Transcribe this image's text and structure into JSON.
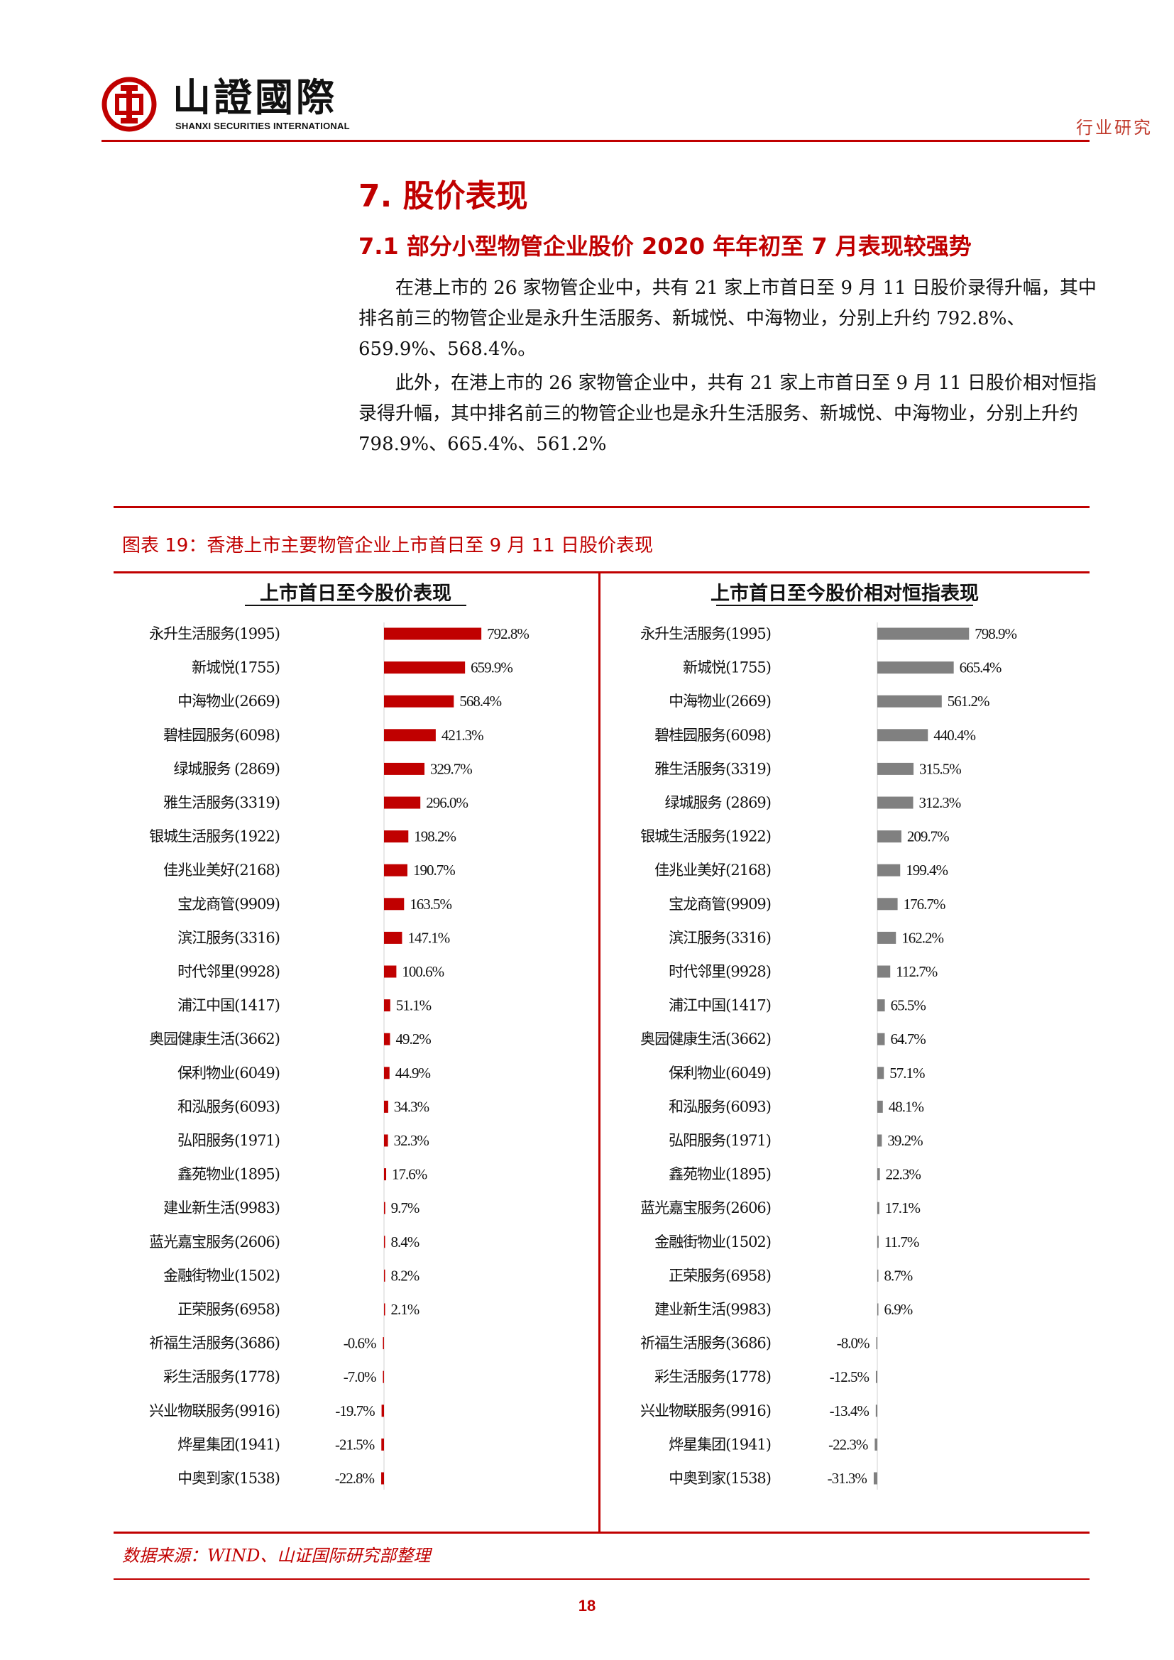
{
  "header": {
    "brand_name": "山證國際",
    "brand_sub": "SHANXI SECURITIES INTERNATIONAL",
    "section_label": "行业研究",
    "colors": {
      "accent": "#c00000"
    }
  },
  "heading1": "7. 股价表现",
  "heading2": "7.1 部分小型物管企业股价 2020 年年初至 7 月表现较强势",
  "paragraphs": [
    "在港上市的 26 家物管企业中，共有 21 家上市首日至 9 月 11 日股价录得升幅，其中排名前三的物管企业是永升生活服务、新城悦、中海物业，分别上升约 792.8%、659.9%、568.4%。",
    "此外，在港上市的 26 家物管企业中，共有 21 家上市首日至 9 月 11 日股价相对恒指录得升幅，其中排名前三的物管企业也是永升生活服务、新城悦、中海物业，分别上升约 798.9%、665.4%、561.2%"
  ],
  "figure_title": "图表 19：香港上市主要物管企业上市首日至 9 月 11 日股价表现",
  "source": "数据来源：WIND、山证国际研究部整理",
  "page_number": "18",
  "chart_data": [
    {
      "type": "bar",
      "orientation": "horizontal",
      "title": "上市首日至今股价表现",
      "color": "#c00000",
      "categories": [
        "永升生活服务(1995)",
        "新城悦(1755)",
        "中海物业(2669)",
        "碧桂园服务(6098)",
        "绿城服务 (2869)",
        "雅生活服务(3319)",
        "银城生活服务(1922)",
        "佳兆业美好(2168)",
        "宝龙商管(9909)",
        "滨江服务(3316)",
        "时代邻里(9928)",
        "浦江中国(1417)",
        "奥园健康生活(3662)",
        "保利物业(6049)",
        "和泓服务(6093)",
        "弘阳服务(1971)",
        "鑫苑物业(1895)",
        "建业新生活(9983)",
        "蓝光嘉宝服务(2606)",
        "金融街物业(1502)",
        "正荣服务(6958)",
        "祈福生活服务(3686)",
        "彩生活服务(1778)",
        "兴业物联服务(9916)",
        "烨星集团(1941)",
        "中奥到家(1538)"
      ],
      "values": [
        792.8,
        659.9,
        568.4,
        421.3,
        329.7,
        296.0,
        198.2,
        190.7,
        163.5,
        147.1,
        100.6,
        51.1,
        49.2,
        44.9,
        34.3,
        32.3,
        17.6,
        9.7,
        8.4,
        8.2,
        2.1,
        -0.6,
        -7.0,
        -19.7,
        -21.5,
        -22.8
      ],
      "labels": [
        "792.8%",
        "659.9%",
        "568.4%",
        "421.3%",
        "329.7%",
        "296.0%",
        "198.2%",
        "190.7%",
        "163.5%",
        "147.1%",
        "100.6%",
        "51.1%",
        "49.2%",
        "44.9%",
        "34.3%",
        "32.3%",
        "17.6%",
        "9.7%",
        "8.4%",
        "8.2%",
        "2.1%",
        "-0.6%",
        "-7.0%",
        "-19.7%",
        "-21.5%",
        "-22.8%"
      ]
    },
    {
      "type": "bar",
      "orientation": "horizontal",
      "title": "上市首日至今股价相对恒指表现",
      "color": "#808080",
      "categories": [
        "永升生活服务(1995)",
        "新城悦(1755)",
        "中海物业(2669)",
        "碧桂园服务(6098)",
        "雅生活服务(3319)",
        "绿城服务 (2869)",
        "银城生活服务(1922)",
        "佳兆业美好(2168)",
        "宝龙商管(9909)",
        "滨江服务(3316)",
        "时代邻里(9928)",
        "浦江中国(1417)",
        "奥园健康生活(3662)",
        "保利物业(6049)",
        "和泓服务(6093)",
        "弘阳服务(1971)",
        "鑫苑物业(1895)",
        "蓝光嘉宝服务(2606)",
        "金融街物业(1502)",
        "正荣服务(6958)",
        "建业新生活(9983)",
        "祈福生活服务(3686)",
        "彩生活服务(1778)",
        "兴业物联服务(9916)",
        "烨星集团(1941)",
        "中奥到家(1538)"
      ],
      "values": [
        798.9,
        665.4,
        561.2,
        440.4,
        315.5,
        312.3,
        209.7,
        199.4,
        176.7,
        162.2,
        112.7,
        65.5,
        64.7,
        57.1,
        48.1,
        39.2,
        22.3,
        17.1,
        11.7,
        8.7,
        6.9,
        -8.0,
        -12.5,
        -13.4,
        -22.3,
        -31.3
      ],
      "labels": [
        "798.9%",
        "665.4%",
        "561.2%",
        "440.4%",
        "315.5%",
        "312.3%",
        "209.7%",
        "199.4%",
        "176.7%",
        "162.2%",
        "112.7%",
        "65.5%",
        "64.7%",
        "57.1%",
        "48.1%",
        "39.2%",
        "22.3%",
        "17.1%",
        "11.7%",
        "8.7%",
        "6.9%",
        "-8.0%",
        "-12.5%",
        "-13.4%",
        "-22.3%",
        "-31.3%"
      ]
    }
  ]
}
